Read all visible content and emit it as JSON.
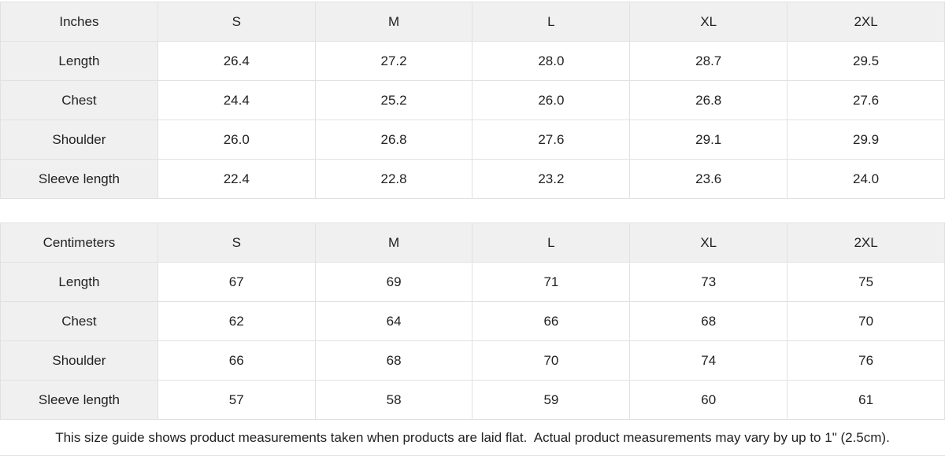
{
  "colors": {
    "header_bg": "#f0f0f0",
    "cell_bg": "#ffffff",
    "border": "#e1e1e1",
    "text": "#222222"
  },
  "tables": [
    {
      "unit_label": "Inches",
      "columns": [
        "S",
        "M",
        "L",
        "XL",
        "2XL"
      ],
      "rows": [
        {
          "label": "Length",
          "values": [
            "26.4",
            "27.2",
            "28.0",
            "28.7",
            "29.5"
          ]
        },
        {
          "label": "Chest",
          "values": [
            "24.4",
            "25.2",
            "26.0",
            "26.8",
            "27.6"
          ]
        },
        {
          "label": "Shoulder",
          "values": [
            "26.0",
            "26.8",
            "27.6",
            "29.1",
            "29.9"
          ]
        },
        {
          "label": "Sleeve length",
          "values": [
            "22.4",
            "22.8",
            "23.2",
            "23.6",
            "24.0"
          ]
        }
      ]
    },
    {
      "unit_label": "Centimeters",
      "columns": [
        "S",
        "M",
        "L",
        "XL",
        "2XL"
      ],
      "rows": [
        {
          "label": "Length",
          "values": [
            "67",
            "69",
            "71",
            "73",
            "75"
          ]
        },
        {
          "label": "Chest",
          "values": [
            "62",
            "64",
            "66",
            "68",
            "70"
          ]
        },
        {
          "label": "Shoulder",
          "values": [
            "66",
            "68",
            "70",
            "74",
            "76"
          ]
        },
        {
          "label": "Sleeve length",
          "values": [
            "57",
            "58",
            "59",
            "60",
            "61"
          ]
        }
      ]
    }
  ],
  "footer": {
    "note": "This size guide shows product measurements taken when products are laid flat.  Actual product measurements may vary by up to 1\" (2.5cm)."
  }
}
